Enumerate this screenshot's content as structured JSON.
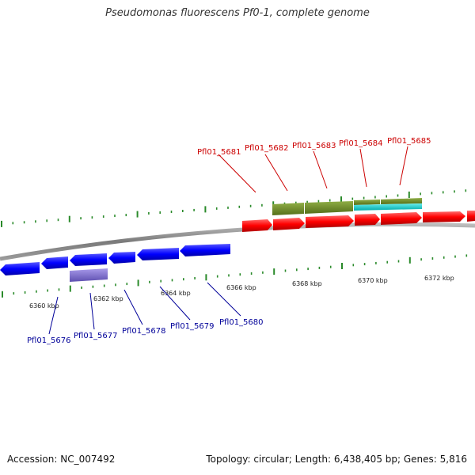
{
  "title": "Pseudomonas fluorescens Pf0-1, complete genome",
  "footer": {
    "accession": "Accession: NC_007492",
    "summary": "Topology: circular; Length: 6,438,405 bp; Genes: 5,816"
  },
  "colors": {
    "forward_gene": "#ff0000",
    "reverse_gene": "#0000ff",
    "forward_label": "#cc0000",
    "reverse_label": "#000099",
    "feature_olive": "#6b8e23",
    "feature_cyan": "#00cccc",
    "feature_purple": "#7b68c8",
    "backbone": "#888888",
    "tick": "#2a8a2a"
  },
  "axis": {
    "ticks": [
      {
        "label": "6360 kbp",
        "kbp": 6360
      },
      {
        "label": "6362 kbp",
        "kbp": 6362
      },
      {
        "label": "6364 kbp",
        "kbp": 6364
      },
      {
        "label": "6366 kbp",
        "kbp": 6366
      },
      {
        "label": "6368 kbp",
        "kbp": 6368
      },
      {
        "label": "6370 kbp",
        "kbp": 6370
      },
      {
        "label": "6372 kbp",
        "kbp": 6372
      }
    ]
  },
  "genes_forward": [
    {
      "label": "Pfl01_5681"
    },
    {
      "label": "Pfl01_5682"
    },
    {
      "label": "Pfl01_5683"
    },
    {
      "label": "Pfl01_5684"
    },
    {
      "label": "Pfl01_5685"
    }
  ],
  "genes_reverse": [
    {
      "label": "Pfl01_5676"
    },
    {
      "label": "Pfl01_5677"
    },
    {
      "label": "Pfl01_5678"
    },
    {
      "label": "Pfl01_5679"
    },
    {
      "label": "Pfl01_5680"
    }
  ]
}
